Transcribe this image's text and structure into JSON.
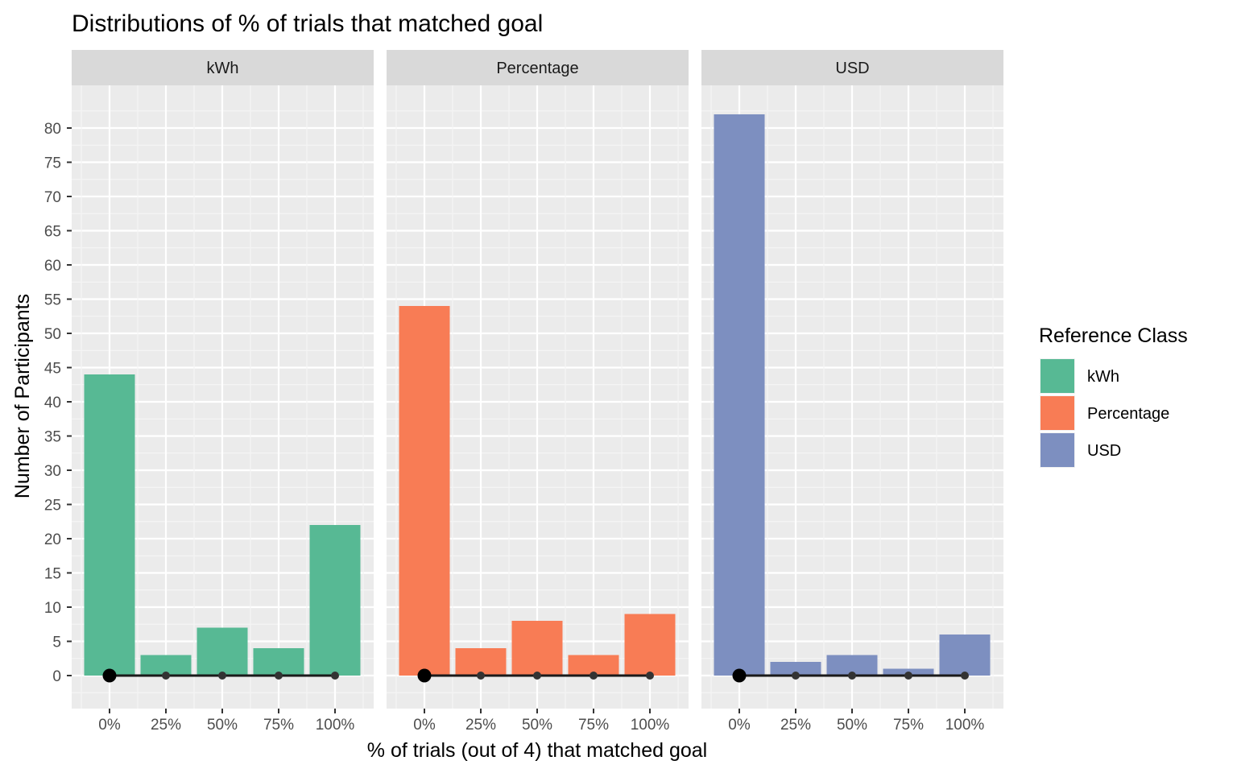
{
  "chart_data": {
    "type": "bar",
    "title": "Distributions of % of trials that matched goal",
    "xlabel": "% of trials (out of 4) that matched goal",
    "ylabel": "Number of Participants",
    "categories": [
      "0%",
      "25%",
      "50%",
      "75%",
      "100%"
    ],
    "ylim": [
      -4,
      85
    ],
    "yticks": [
      0,
      5,
      10,
      15,
      20,
      25,
      30,
      35,
      40,
      45,
      50,
      55,
      60,
      65,
      70,
      75,
      80
    ],
    "grid": true,
    "facets": [
      {
        "name": "kWh",
        "color": "#57B994",
        "values": [
          44,
          3,
          7,
          4,
          22
        ],
        "range": [
          0,
          100
        ],
        "median": 0
      },
      {
        "name": "Percentage",
        "color": "#F87C55",
        "values": [
          54,
          4,
          8,
          3,
          9
        ],
        "range": [
          0,
          100
        ],
        "median": 0
      },
      {
        "name": "USD",
        "color": "#7D8FC0",
        "values": [
          82,
          2,
          3,
          1,
          6
        ],
        "range": [
          0,
          100
        ],
        "median": 0
      }
    ],
    "legend": {
      "title": "Reference Class",
      "position": "right",
      "items": [
        {
          "label": "kWh",
          "color": "#57B994"
        },
        {
          "label": "Percentage",
          "color": "#F87C55"
        },
        {
          "label": "USD",
          "color": "#7D8FC0"
        }
      ]
    }
  }
}
